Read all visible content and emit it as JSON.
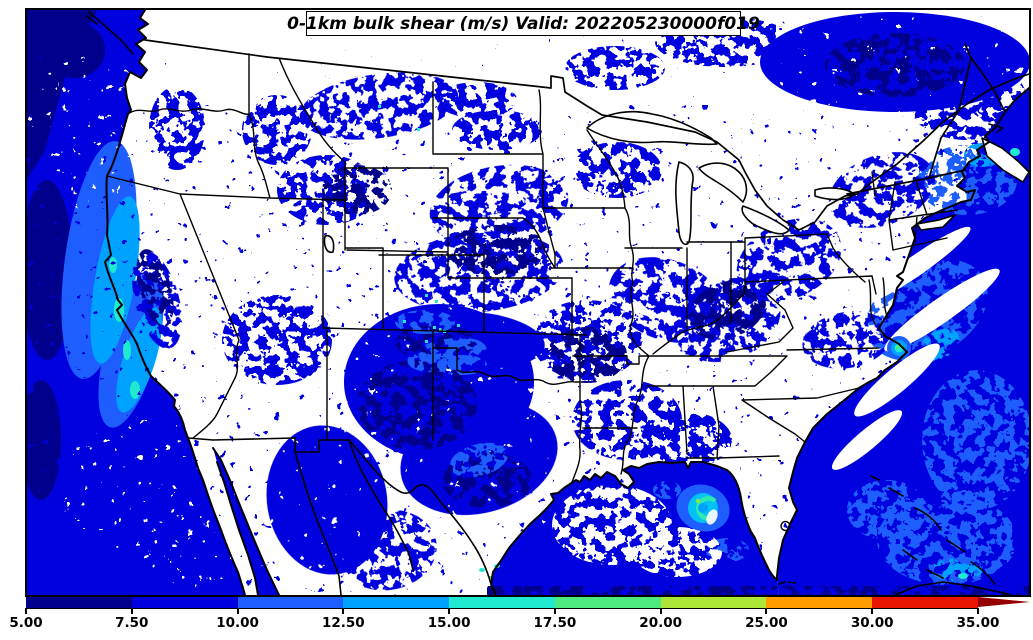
{
  "title": "0-1km bulk shear (m/s) Valid: 202205230000f019",
  "chart_data": {
    "type": "heatmap",
    "subtype": "filled-contour-weather-map",
    "field": "0-1km bulk shear",
    "units": "m/s",
    "valid_time": "202205230000f019",
    "region": "Continental United States and adjacent oceans",
    "title": "0-1km bulk shear (m/s) Valid: 202205230000f019",
    "levels": [
      5,
      7.5,
      10,
      12.5,
      15,
      17.5,
      20,
      25,
      30,
      35
    ],
    "level_labels": [
      "5.00",
      "7.50",
      "10.00",
      "12.50",
      "15.00",
      "17.50",
      "20.00",
      "25.00",
      "30.00",
      "35.00"
    ],
    "colors": [
      "#00008c",
      "#0101df",
      "#1e5eff",
      "#00a2ff",
      "#1fe9cf",
      "#4dea7d",
      "#ace637",
      "#ff9d00",
      "#e81500"
    ],
    "extend": "max",
    "extend_color": "#970000",
    "background_color": "#ffffff",
    "land_color": "#ffffff",
    "border_color": "#000000",
    "legend_position": "bottom",
    "grid": false,
    "features": [
      {
        "name": "Pacific offshore California band",
        "value_range_ms": "10-17.5"
      },
      {
        "name": "Broad Pacific / Gulf of Mexico / Atlantic background",
        "value_range_ms": "5-10"
      },
      {
        "name": "Vortex south of Louisiana coast",
        "value_range_ms": "12.5-20"
      },
      {
        "name": "Spot off North Carolina coast",
        "value_range_ms": "12.5-17.5"
      },
      {
        "name": "New Mexico / Colorado / Texas panhandle area",
        "value_range_ms": "7.5-15"
      },
      {
        "name": "Quebec / eastern Canada area",
        "value_range_ms": "5-10"
      },
      {
        "name": "Scattered speckled areas over most states",
        "value_range_ms": "5-10"
      }
    ]
  }
}
